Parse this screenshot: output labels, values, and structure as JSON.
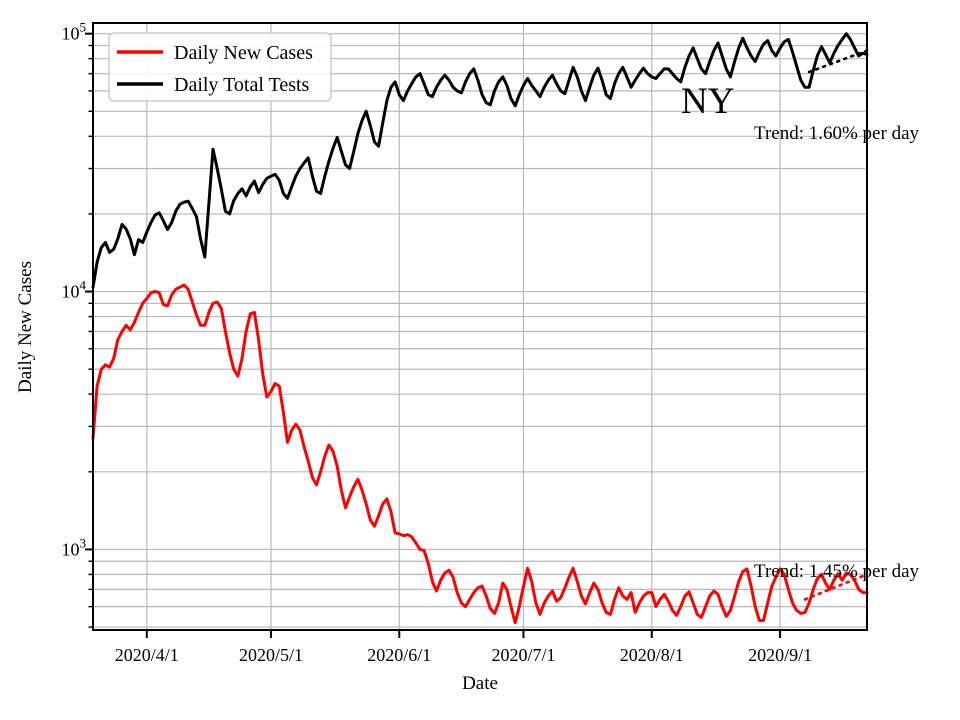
{
  "figure": {
    "background": "#ffffff",
    "grid_color": "#b9b9b9",
    "spine_color": "#000000"
  },
  "annotations": {
    "state": "NY",
    "tests_trend": "Trend: 1.60% per day",
    "cases_trend": "Trend: 1.45% per day"
  },
  "legend": {
    "items": [
      {
        "label": "Daily New Cases",
        "color": "#ff0000"
      },
      {
        "label": "Daily Total Tests",
        "color": "#000000"
      }
    ]
  },
  "chart_data": {
    "type": "line",
    "title": "",
    "xlabel": "Date",
    "ylabel": "Daily New Cases",
    "y_scale": "log",
    "ylim": [
      487,
      110000
    ],
    "grid": true,
    "legend_position": "upper left",
    "x_start_date": "2020/3/19",
    "x_end_date": "2020/9/22",
    "x_frequency": "daily",
    "x_tick_labels": [
      "2020/4/1",
      "2020/5/1",
      "2020/6/1",
      "2020/7/1",
      "2020/8/1",
      "2020/9/1"
    ],
    "y_tick_labels": [
      "10^3",
      "10^4",
      "10^5"
    ],
    "series": [
      {
        "name": "Daily New Cases",
        "color": "#ff0000",
        "style": "solid",
        "values": [
          2700,
          4300,
          5000,
          5200,
          5100,
          5500,
          6500,
          7000,
          7400,
          7100,
          7600,
          8300,
          9000,
          9400,
          9900,
          10000,
          9900,
          8900,
          8800,
          9700,
          10200,
          10400,
          10600,
          10200,
          9100,
          8100,
          7400,
          7400,
          8300,
          9000,
          9100,
          8600,
          7000,
          5800,
          5000,
          4700,
          5500,
          7000,
          8200,
          8300,
          6500,
          4800,
          3900,
          4100,
          4400,
          4300,
          3400,
          2600,
          2900,
          3060,
          2900,
          2500,
          2200,
          1900,
          1780,
          2000,
          2300,
          2540,
          2400,
          2100,
          1700,
          1450,
          1600,
          1750,
          1870,
          1700,
          1500,
          1300,
          1230,
          1350,
          1500,
          1570,
          1400,
          1160,
          1150,
          1130,
          1140,
          1120,
          1060,
          1000,
          990,
          880,
          750,
          690,
          760,
          810,
          830,
          780,
          680,
          620,
          600,
          640,
          680,
          710,
          720,
          660,
          590,
          565,
          620,
          740,
          700,
          600,
          520,
          600,
          720,
          845,
          750,
          620,
          560,
          620,
          660,
          690,
          630,
          650,
          710,
          780,
          845,
          750,
          660,
          615,
          680,
          740,
          700,
          620,
          570,
          560,
          640,
          710,
          660,
          640,
          680,
          570,
          620,
          660,
          680,
          680,
          600,
          640,
          670,
          630,
          580,
          555,
          600,
          660,
          685,
          620,
          560,
          545,
          600,
          660,
          690,
          670,
          600,
          550,
          580,
          660,
          750,
          820,
          840,
          720,
          600,
          530,
          530,
          620,
          720,
          780,
          840,
          800,
          700,
          620,
          580,
          565,
          570,
          620,
          700,
          770,
          800,
          740,
          700,
          760,
          805,
          760,
          810,
          800,
          760,
          700,
          680,
          680
        ]
      },
      {
        "name": "Daily Total Tests",
        "color": "#000000",
        "style": "solid",
        "values": [
          10400,
          13000,
          14800,
          15500,
          14200,
          14600,
          16000,
          18200,
          17500,
          16000,
          13900,
          15900,
          15500,
          17000,
          18500,
          19800,
          20200,
          18800,
          17400,
          18500,
          20500,
          21800,
          22200,
          22400,
          21000,
          19500,
          16000,
          13600,
          22000,
          35600,
          30000,
          25000,
          20500,
          20000,
          22500,
          24000,
          25000,
          23500,
          25500,
          26800,
          24200,
          26000,
          27500,
          28000,
          28500,
          27000,
          24000,
          23000,
          25500,
          28000,
          30000,
          31500,
          33000,
          28000,
          24500,
          24000,
          28000,
          32000,
          36000,
          39600,
          35000,
          31000,
          30000,
          35000,
          41000,
          46000,
          50000,
          44000,
          38000,
          36600,
          45000,
          55000,
          62000,
          65000,
          58000,
          55000,
          60000,
          64000,
          68000,
          70000,
          64000,
          58000,
          57000,
          62000,
          66000,
          69000,
          66000,
          62000,
          60000,
          59000,
          65000,
          70000,
          73000,
          66000,
          58000,
          54000,
          53000,
          60000,
          65000,
          68000,
          63000,
          56000,
          52500,
          58000,
          63000,
          67000,
          63000,
          60000,
          57000,
          62000,
          66000,
          69000,
          64000,
          60000,
          58500,
          66000,
          74000,
          68000,
          60000,
          55000,
          62000,
          69000,
          73500,
          66000,
          58000,
          56000,
          64000,
          70000,
          74000,
          68000,
          62000,
          66000,
          70000,
          73500,
          70000,
          68000,
          67000,
          70000,
          73000,
          73000,
          70000,
          67000,
          65000,
          74000,
          82000,
          88000,
          80000,
          73000,
          70000,
          78000,
          86000,
          92000,
          82000,
          73000,
          68000,
          78000,
          88000,
          96000,
          88000,
          82000,
          78000,
          85000,
          91000,
          94000,
          86000,
          82000,
          88000,
          93000,
          95000,
          85000,
          75000,
          66000,
          62000,
          62000,
          72000,
          82000,
          89000,
          83000,
          77000,
          84000,
          90000,
          95000,
          100000,
          95000,
          88000,
          82000,
          84000,
          83000
        ]
      },
      {
        "name": "Daily New Cases trend",
        "color": "#ff0000",
        "style": "dotted",
        "trend_pct_per_day": 1.45,
        "points": [
          {
            "date": "2020/9/7",
            "value": 640
          },
          {
            "date": "2020/9/22",
            "value": 800
          }
        ]
      },
      {
        "name": "Daily Total Tests trend",
        "color": "#000000",
        "style": "dotted",
        "trend_pct_per_day": 1.6,
        "points": [
          {
            "date": "2020/9/8",
            "value": 71000
          },
          {
            "date": "2020/9/22",
            "value": 86000
          }
        ]
      }
    ]
  }
}
